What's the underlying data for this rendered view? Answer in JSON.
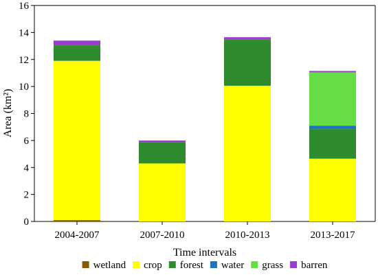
{
  "chart_data": {
    "type": "bar",
    "stacked": true,
    "categories": [
      "2004-2007",
      "2007-2010",
      "2010-2013",
      "2013-2017"
    ],
    "series": [
      {
        "name": "wetland",
        "color": "#8b5a00",
        "values": [
          0.1,
          0.0,
          0.0,
          0.0
        ]
      },
      {
        "name": "crop",
        "color": "#ffff00",
        "values": [
          11.8,
          4.3,
          10.05,
          4.65
        ]
      },
      {
        "name": "forest",
        "color": "#2e8b2e",
        "values": [
          1.15,
          1.55,
          3.45,
          2.2
        ]
      },
      {
        "name": "water",
        "color": "#1e73be",
        "values": [
          0.0,
          0.0,
          0.0,
          0.25
        ]
      },
      {
        "name": "grass",
        "color": "#66dd44",
        "values": [
          0.0,
          0.0,
          0.0,
          3.95
        ]
      },
      {
        "name": "barren",
        "color": "#9b3bcf",
        "values": [
          0.35,
          0.15,
          0.15,
          0.1
        ]
      }
    ],
    "xlabel": "Time intervals",
    "ylabel": "Area (km²)",
    "ylim": [
      0,
      16
    ],
    "yticks": [
      "0",
      "2",
      "4",
      "6",
      "8",
      "10",
      "12",
      "14",
      "16"
    ],
    "grid": false,
    "legend_position": "bottom"
  }
}
